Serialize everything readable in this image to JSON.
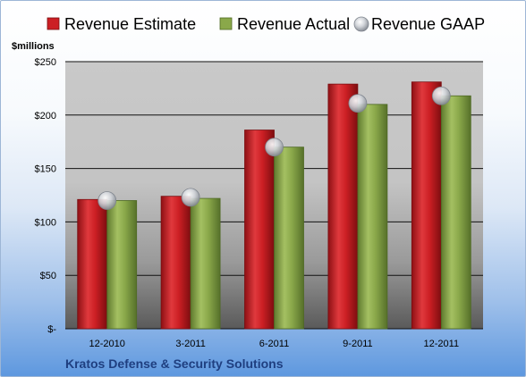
{
  "chart_data": {
    "type": "bar",
    "title": "",
    "unit_label": "$millions",
    "company": "Kratos Defense & Security Solutions",
    "categories": [
      "12-2010",
      "3-2011",
      "6-2011",
      "9-2011",
      "12-2011"
    ],
    "series": [
      {
        "name": "Revenue Estimate",
        "kind": "bar",
        "color": "#cc1f24",
        "values": [
          121,
          124,
          186,
          229,
          231
        ]
      },
      {
        "name": "Revenue Actual",
        "kind": "bar",
        "color": "#8aa84a",
        "values": [
          120,
          122,
          170,
          210,
          218
        ]
      },
      {
        "name": "Revenue GAAP",
        "kind": "marker",
        "color": "#c8ccd2",
        "values": [
          120,
          123,
          170,
          211,
          218
        ]
      }
    ],
    "ylim": [
      0,
      250
    ],
    "yticks": [
      0,
      50,
      100,
      150,
      200,
      250
    ],
    "ytick_labels": [
      "$-",
      "$50",
      "$100",
      "$150",
      "$200",
      "$250"
    ],
    "grid": true,
    "legend_position": "top"
  }
}
